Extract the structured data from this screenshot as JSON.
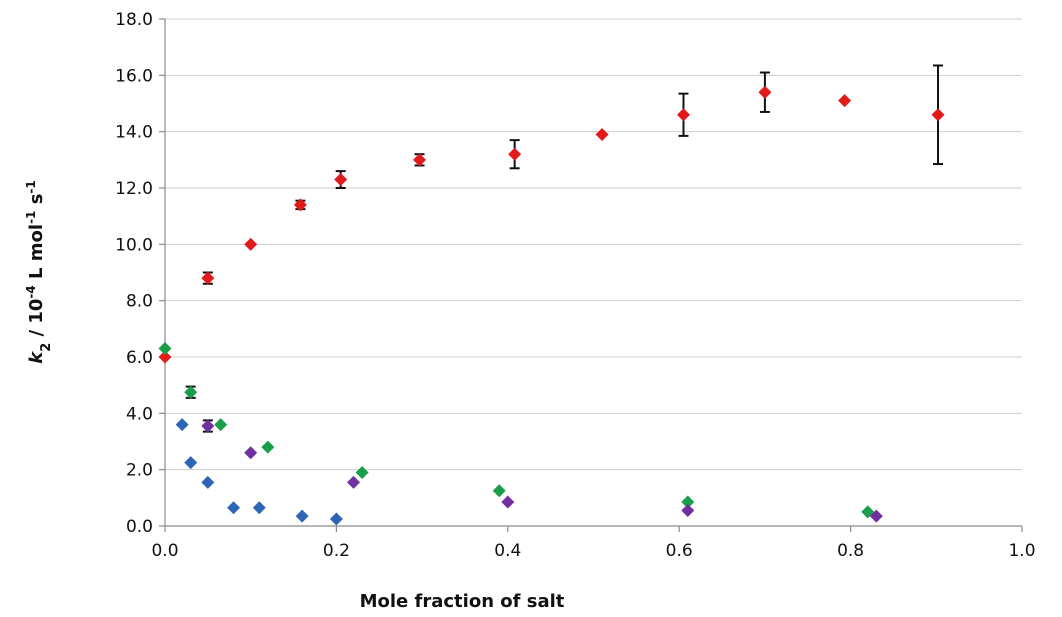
{
  "chart_data": {
    "type": "scatter",
    "xlabel": "Mole fraction of salt",
    "ylabel_parts": [
      "k",
      "2",
      " / 10",
      "-4",
      " L mol",
      "-1",
      " s",
      "-1"
    ],
    "xlim": [
      0.0,
      1.0
    ],
    "ylim": [
      0.0,
      18.0
    ],
    "x_ticks": [
      "0.0",
      "0.2",
      "0.4",
      "0.6",
      "0.8",
      "1.0"
    ],
    "y_ticks": [
      "0.0",
      "2.0",
      "4.0",
      "6.0",
      "8.0",
      "10.0",
      "12.0",
      "14.0",
      "16.0",
      "18.0"
    ],
    "grid": "horizontal",
    "legend": "none",
    "series": [
      {
        "color": "#e31a1c",
        "points": [
          {
            "x": 0.0,
            "y": 6.0,
            "err": 0.0
          },
          {
            "x": 0.05,
            "y": 8.8,
            "err": 0.2
          },
          {
            "x": 0.1,
            "y": 10.0,
            "err": 0.0
          },
          {
            "x": 0.158,
            "y": 11.4,
            "err": 0.15
          },
          {
            "x": 0.205,
            "y": 12.3,
            "err": 0.3
          },
          {
            "x": 0.297,
            "y": 13.0,
            "err": 0.2
          },
          {
            "x": 0.408,
            "y": 13.2,
            "err": 0.5
          },
          {
            "x": 0.51,
            "y": 13.9,
            "err": 0.0
          },
          {
            "x": 0.605,
            "y": 14.6,
            "err": 0.75
          },
          {
            "x": 0.7,
            "y": 15.4,
            "err": 0.7
          },
          {
            "x": 0.793,
            "y": 15.1,
            "err": 0.0
          },
          {
            "x": 0.902,
            "y": 14.6,
            "err": 1.75
          }
        ]
      },
      {
        "color": "#1a9e4a",
        "points": [
          {
            "x": 0.0,
            "y": 6.3,
            "err": 0.0
          },
          {
            "x": 0.03,
            "y": 4.75,
            "err": 0.2
          },
          {
            "x": 0.065,
            "y": 3.6,
            "err": 0.0
          },
          {
            "x": 0.12,
            "y": 2.8,
            "err": 0.0
          },
          {
            "x": 0.23,
            "y": 1.9,
            "err": 0.0
          },
          {
            "x": 0.39,
            "y": 1.25,
            "err": 0.0
          },
          {
            "x": 0.61,
            "y": 0.85,
            "err": 0.0
          },
          {
            "x": 0.82,
            "y": 0.5,
            "err": 0.0
          }
        ]
      },
      {
        "color": "#7030a0",
        "points": [
          {
            "x": 0.05,
            "y": 3.55,
            "err": 0.2
          },
          {
            "x": 0.1,
            "y": 2.6,
            "err": 0.0
          },
          {
            "x": 0.22,
            "y": 1.55,
            "err": 0.0
          },
          {
            "x": 0.4,
            "y": 0.85,
            "err": 0.0
          },
          {
            "x": 0.61,
            "y": 0.55,
            "err": 0.0
          },
          {
            "x": 0.83,
            "y": 0.35,
            "err": 0.0
          }
        ]
      },
      {
        "color": "#2e66b5",
        "points": [
          {
            "x": 0.02,
            "y": 3.6,
            "err": 0.0
          },
          {
            "x": 0.03,
            "y": 2.25,
            "err": 0.0
          },
          {
            "x": 0.05,
            "y": 1.55,
            "err": 0.0
          },
          {
            "x": 0.08,
            "y": 0.65,
            "err": 0.0
          },
          {
            "x": 0.11,
            "y": 0.65,
            "err": 0.0
          },
          {
            "x": 0.16,
            "y": 0.35,
            "err": 0.0
          },
          {
            "x": 0.2,
            "y": 0.25,
            "err": 0.0
          }
        ]
      }
    ]
  }
}
